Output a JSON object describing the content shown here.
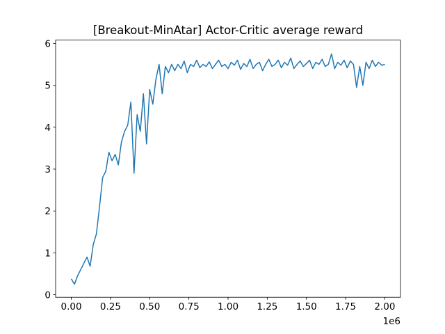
{
  "chart_data": {
    "type": "line",
    "title": "[Breakout-MinAtar] Actor-Critic average reward",
    "x_offset_label": "1e6",
    "x": [
      0,
      0.02,
      0.04,
      0.06,
      0.08,
      0.1,
      0.12,
      0.14,
      0.16,
      0.18,
      0.2,
      0.22,
      0.24,
      0.26,
      0.28,
      0.3,
      0.32,
      0.34,
      0.36,
      0.38,
      0.4,
      0.42,
      0.44,
      0.46,
      0.48,
      0.5,
      0.52,
      0.54,
      0.56,
      0.58,
      0.6,
      0.62,
      0.64,
      0.66,
      0.68,
      0.7,
      0.72,
      0.74,
      0.76,
      0.78,
      0.8,
      0.82,
      0.84,
      0.86,
      0.88,
      0.9,
      0.92,
      0.94,
      0.96,
      0.98,
      1.0,
      1.02,
      1.04,
      1.06,
      1.08,
      1.1,
      1.12,
      1.14,
      1.16,
      1.18,
      1.2,
      1.22,
      1.24,
      1.26,
      1.28,
      1.3,
      1.32,
      1.34,
      1.36,
      1.38,
      1.4,
      1.42,
      1.44,
      1.46,
      1.48,
      1.5,
      1.52,
      1.54,
      1.56,
      1.58,
      1.6,
      1.62,
      1.64,
      1.66,
      1.68,
      1.7,
      1.72,
      1.74,
      1.76,
      1.78,
      1.8,
      1.82,
      1.84,
      1.86,
      1.88,
      1.9,
      1.92,
      1.94,
      1.96,
      1.98,
      2.0
    ],
    "series": [
      {
        "name": "average reward",
        "color": "#1f77b4",
        "values": [
          0.38,
          0.25,
          0.45,
          0.6,
          0.75,
          0.9,
          0.68,
          1.2,
          1.45,
          2.1,
          2.8,
          2.95,
          3.4,
          3.2,
          3.35,
          3.1,
          3.65,
          3.9,
          4.05,
          4.6,
          2.9,
          4.3,
          3.9,
          4.8,
          3.6,
          4.9,
          4.55,
          5.15,
          5.5,
          4.8,
          5.45,
          5.3,
          5.5,
          5.35,
          5.5,
          5.4,
          5.58,
          5.3,
          5.5,
          5.45,
          5.6,
          5.42,
          5.5,
          5.45,
          5.56,
          5.4,
          5.5,
          5.6,
          5.45,
          5.5,
          5.4,
          5.55,
          5.48,
          5.6,
          5.38,
          5.52,
          5.45,
          5.62,
          5.4,
          5.5,
          5.55,
          5.35,
          5.5,
          5.62,
          5.45,
          5.5,
          5.6,
          5.42,
          5.55,
          5.48,
          5.65,
          5.4,
          5.5,
          5.58,
          5.45,
          5.52,
          5.6,
          5.4,
          5.55,
          5.5,
          5.62,
          5.45,
          5.5,
          5.75,
          5.4,
          5.55,
          5.48,
          5.6,
          5.42,
          5.58,
          5.5,
          4.95,
          5.45,
          5.0,
          5.55,
          5.4,
          5.6,
          5.45,
          5.55,
          5.48,
          5.5
        ]
      }
    ],
    "xlim": [
      -0.1,
      2.1
    ],
    "ylim": [
      -0.06,
      6.08
    ],
    "xticks": [
      {
        "value": 0,
        "label": "0.00"
      },
      {
        "value": 0.25,
        "label": "0.25"
      },
      {
        "value": 0.5,
        "label": "0.50"
      },
      {
        "value": 0.75,
        "label": "0.75"
      },
      {
        "value": 1,
        "label": "1.00"
      },
      {
        "value": 1.25,
        "label": "1.25"
      },
      {
        "value": 1.5,
        "label": "1.50"
      },
      {
        "value": 1.75,
        "label": "1.75"
      },
      {
        "value": 2,
        "label": "2.00"
      }
    ],
    "yticks": [
      0,
      1,
      2,
      3,
      4,
      5,
      6
    ]
  }
}
